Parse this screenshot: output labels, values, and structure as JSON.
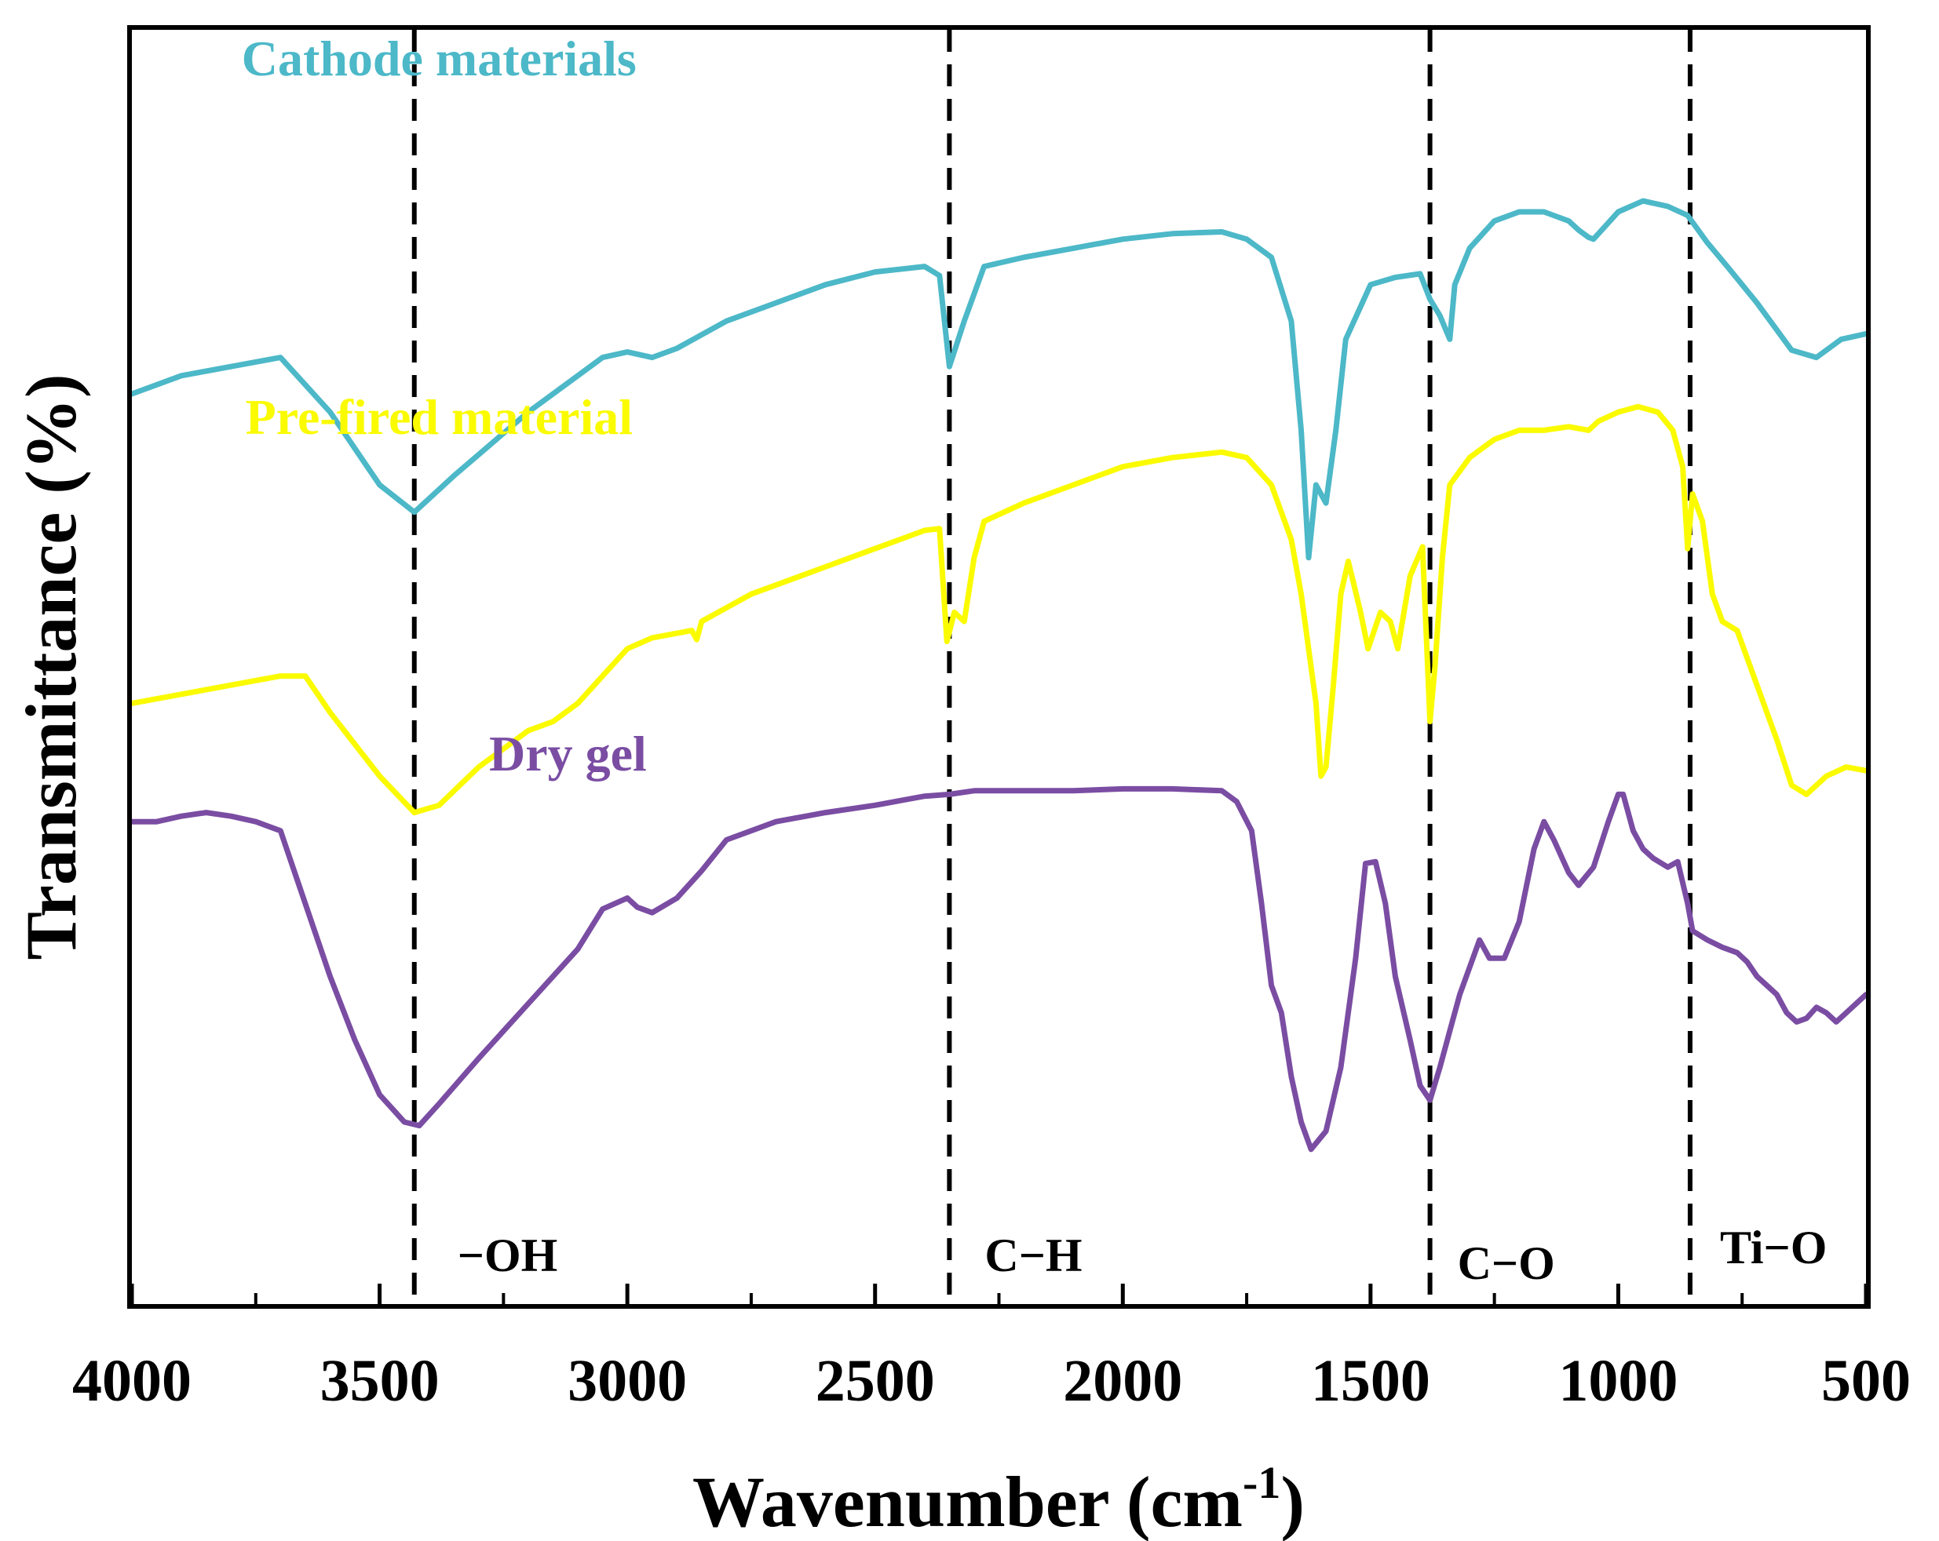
{
  "chart_data": {
    "type": "line",
    "xlabel": "Wavenumber (cm",
    "xlabel_sup": "-1",
    "xlabel_close": ")",
    "ylabel": "Transmittance (%)",
    "xlim": [
      4000,
      500
    ],
    "x_reversed": true,
    "y_ticks_visible": false,
    "grid": false,
    "legend": "inline labels",
    "x_ticks": [
      "4000",
      "3500",
      "3000",
      "2500",
      "2000",
      "1500",
      "1000",
      "500"
    ],
    "x_tick_values": [
      4000,
      3500,
      3000,
      2500,
      2000,
      1500,
      1000,
      500
    ],
    "reference_lines": [
      {
        "x": 3430,
        "label": "−OH"
      },
      {
        "x": 2350,
        "label": "C−H"
      },
      {
        "x": 1380,
        "label": "C−O"
      },
      {
        "x": 855,
        "label": "Ti−O"
      }
    ],
    "series": [
      {
        "name": "Cathode materials",
        "color": "#4cb8c8",
        "points": [
          [
            4000,
            90
          ],
          [
            3900,
            91
          ],
          [
            3800,
            91.5
          ],
          [
            3700,
            92
          ],
          [
            3600,
            89
          ],
          [
            3500,
            85
          ],
          [
            3430,
            83.5
          ],
          [
            3350,
            85.5
          ],
          [
            3200,
            89
          ],
          [
            3050,
            92
          ],
          [
            3000,
            92.3
          ],
          [
            2950,
            92
          ],
          [
            2900,
            92.5
          ],
          [
            2800,
            94
          ],
          [
            2700,
            95
          ],
          [
            2600,
            96
          ],
          [
            2500,
            96.7
          ],
          [
            2400,
            97
          ],
          [
            2370,
            96.5
          ],
          [
            2350,
            91.5
          ],
          [
            2320,
            94
          ],
          [
            2280,
            97
          ],
          [
            2200,
            97.5
          ],
          [
            2100,
            98
          ],
          [
            2000,
            98.5
          ],
          [
            1900,
            98.8
          ],
          [
            1800,
            98.9
          ],
          [
            1750,
            98.5
          ],
          [
            1700,
            97.5
          ],
          [
            1660,
            94
          ],
          [
            1640,
            88
          ],
          [
            1625,
            81
          ],
          [
            1610,
            85
          ],
          [
            1590,
            84
          ],
          [
            1570,
            88
          ],
          [
            1550,
            93
          ],
          [
            1500,
            96
          ],
          [
            1450,
            96.4
          ],
          [
            1400,
            96.6
          ],
          [
            1380,
            95.2
          ],
          [
            1360,
            94.3
          ],
          [
            1340,
            93
          ],
          [
            1330,
            96
          ],
          [
            1300,
            98
          ],
          [
            1250,
            99.5
          ],
          [
            1200,
            100
          ],
          [
            1150,
            100
          ],
          [
            1100,
            99.5
          ],
          [
            1080,
            99
          ],
          [
            1060,
            98.6
          ],
          [
            1050,
            98.5
          ],
          [
            1000,
            100
          ],
          [
            950,
            100.6
          ],
          [
            900,
            100.3
          ],
          [
            860,
            99.8
          ],
          [
            820,
            98.3
          ],
          [
            780,
            97
          ],
          [
            720,
            95
          ],
          [
            650,
            92.4
          ],
          [
            600,
            92
          ],
          [
            550,
            93
          ],
          [
            500,
            93.3
          ]
        ]
      },
      {
        "name": "Pre-fired material",
        "color": "#fbfb00",
        "points": [
          [
            4000,
            73
          ],
          [
            3900,
            73.5
          ],
          [
            3800,
            74
          ],
          [
            3700,
            74.5
          ],
          [
            3650,
            74.5
          ],
          [
            3600,
            72.5
          ],
          [
            3500,
            69
          ],
          [
            3430,
            67
          ],
          [
            3380,
            67.4
          ],
          [
            3300,
            69.5
          ],
          [
            3200,
            71.5
          ],
          [
            3150,
            72
          ],
          [
            3100,
            73
          ],
          [
            3000,
            76
          ],
          [
            2950,
            76.6
          ],
          [
            2870,
            77
          ],
          [
            2860,
            76.5
          ],
          [
            2850,
            77.5
          ],
          [
            2750,
            79
          ],
          [
            2600,
            80.5
          ],
          [
            2500,
            81.5
          ],
          [
            2400,
            82.5
          ],
          [
            2370,
            82.6
          ],
          [
            2355,
            76.4
          ],
          [
            2340,
            78
          ],
          [
            2320,
            77.5
          ],
          [
            2300,
            81
          ],
          [
            2280,
            83
          ],
          [
            2200,
            84
          ],
          [
            2100,
            85
          ],
          [
            2000,
            86
          ],
          [
            1900,
            86.5
          ],
          [
            1800,
            86.8
          ],
          [
            1750,
            86.5
          ],
          [
            1700,
            85
          ],
          [
            1660,
            82
          ],
          [
            1640,
            79
          ],
          [
            1610,
            73
          ],
          [
            1600,
            69
          ],
          [
            1590,
            69.5
          ],
          [
            1575,
            74
          ],
          [
            1560,
            79
          ],
          [
            1545,
            80.8
          ],
          [
            1520,
            78
          ],
          [
            1505,
            76
          ],
          [
            1480,
            78
          ],
          [
            1460,
            77.5
          ],
          [
            1445,
            76
          ],
          [
            1420,
            80
          ],
          [
            1395,
            81.6
          ],
          [
            1380,
            72
          ],
          [
            1370,
            75
          ],
          [
            1355,
            81
          ],
          [
            1340,
            85
          ],
          [
            1300,
            86.5
          ],
          [
            1250,
            87.5
          ],
          [
            1200,
            88
          ],
          [
            1150,
            88
          ],
          [
            1100,
            88.2
          ],
          [
            1060,
            88
          ],
          [
            1040,
            88.5
          ],
          [
            1000,
            89
          ],
          [
            960,
            89.3
          ],
          [
            920,
            89
          ],
          [
            890,
            88
          ],
          [
            870,
            86
          ],
          [
            860,
            81.5
          ],
          [
            850,
            84.5
          ],
          [
            830,
            83
          ],
          [
            810,
            79
          ],
          [
            790,
            77.5
          ],
          [
            760,
            77
          ],
          [
            720,
            74
          ],
          [
            680,
            71
          ],
          [
            650,
            68.5
          ],
          [
            620,
            68
          ],
          [
            580,
            69
          ],
          [
            540,
            69.5
          ],
          [
            500,
            69.3
          ]
        ]
      },
      {
        "name": "Dry gel",
        "color": "#7a4da3",
        "points": [
          [
            4000,
            66.5
          ],
          [
            3950,
            66.5
          ],
          [
            3900,
            66.8
          ],
          [
            3850,
            67
          ],
          [
            3800,
            66.8
          ],
          [
            3750,
            66.5
          ],
          [
            3700,
            66
          ],
          [
            3650,
            62
          ],
          [
            3600,
            58
          ],
          [
            3550,
            54.5
          ],
          [
            3500,
            51.5
          ],
          [
            3450,
            50
          ],
          [
            3420,
            49.8
          ],
          [
            3380,
            51
          ],
          [
            3300,
            53.5
          ],
          [
            3200,
            56.5
          ],
          [
            3100,
            59.5
          ],
          [
            3050,
            61.7
          ],
          [
            3000,
            62.3
          ],
          [
            2980,
            61.8
          ],
          [
            2950,
            61.5
          ],
          [
            2900,
            62.3
          ],
          [
            2850,
            63.8
          ],
          [
            2800,
            65.5
          ],
          [
            2700,
            66.5
          ],
          [
            2600,
            67
          ],
          [
            2500,
            67.4
          ],
          [
            2400,
            67.9
          ],
          [
            2350,
            68
          ],
          [
            2300,
            68.2
          ],
          [
            2200,
            68.2
          ],
          [
            2100,
            68.2
          ],
          [
            2000,
            68.3
          ],
          [
            1900,
            68.3
          ],
          [
            1800,
            68.2
          ],
          [
            1770,
            67.6
          ],
          [
            1740,
            66
          ],
          [
            1720,
            62
          ],
          [
            1700,
            57.5
          ],
          [
            1680,
            56
          ],
          [
            1660,
            52.5
          ],
          [
            1640,
            50
          ],
          [
            1620,
            48.5
          ],
          [
            1590,
            49.5
          ],
          [
            1560,
            53
          ],
          [
            1530,
            59
          ],
          [
            1510,
            64.2
          ],
          [
            1490,
            64.3
          ],
          [
            1470,
            62
          ],
          [
            1450,
            58
          ],
          [
            1420,
            54.5
          ],
          [
            1400,
            52
          ],
          [
            1380,
            51.2
          ],
          [
            1360,
            53
          ],
          [
            1340,
            55
          ],
          [
            1320,
            57
          ],
          [
            1300,
            58.5
          ],
          [
            1280,
            60
          ],
          [
            1260,
            59
          ],
          [
            1230,
            59
          ],
          [
            1200,
            61
          ],
          [
            1170,
            65
          ],
          [
            1150,
            66.5
          ],
          [
            1130,
            65.5
          ],
          [
            1100,
            63.7
          ],
          [
            1080,
            63
          ],
          [
            1050,
            64
          ],
          [
            1020,
            66.5
          ],
          [
            1000,
            68
          ],
          [
            990,
            68
          ],
          [
            970,
            66
          ],
          [
            950,
            65
          ],
          [
            930,
            64.5
          ],
          [
            900,
            64
          ],
          [
            880,
            64.3
          ],
          [
            860,
            62
          ],
          [
            850,
            60.5
          ],
          [
            820,
            60
          ],
          [
            790,
            59.6
          ],
          [
            760,
            59.3
          ],
          [
            740,
            58.8
          ],
          [
            720,
            58
          ],
          [
            700,
            57.5
          ],
          [
            680,
            57
          ],
          [
            660,
            56
          ],
          [
            640,
            55.5
          ],
          [
            620,
            55.7
          ],
          [
            600,
            56.3
          ],
          [
            580,
            56
          ],
          [
            560,
            55.5
          ],
          [
            540,
            56
          ],
          [
            520,
            56.5
          ],
          [
            500,
            57
          ]
        ]
      }
    ]
  }
}
